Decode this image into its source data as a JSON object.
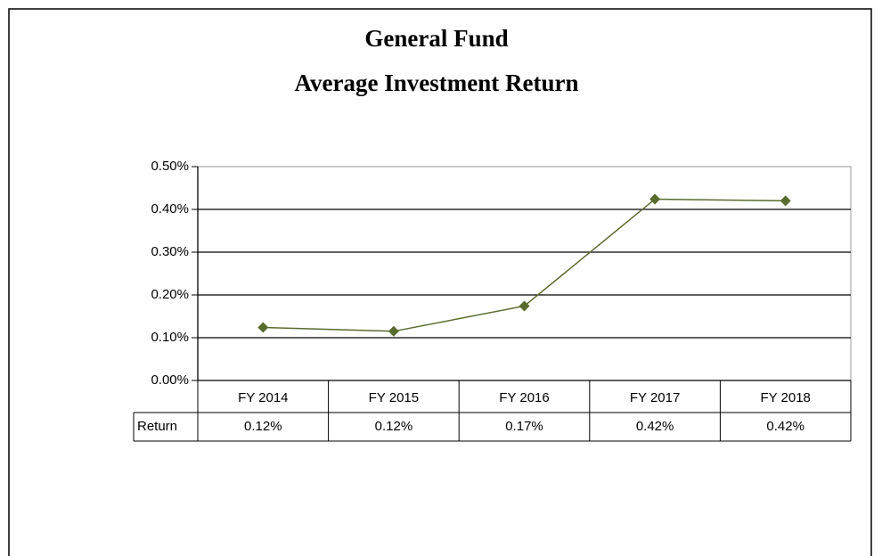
{
  "chart_data": {
    "type": "line",
    "title": [
      "General Fund",
      "Average Investment Return"
    ],
    "categories": [
      "FY 2014",
      "FY 2015",
      "FY 2016",
      "FY 2017",
      "FY 2018"
    ],
    "series": [
      {
        "name": "Return",
        "color": "#5a6b2e",
        "values": [
          0.124,
          0.115,
          0.174,
          0.424,
          0.42
        ],
        "value_labels": [
          "0.12%",
          "0.12%",
          "0.17%",
          "0.42%",
          "0.42%"
        ]
      }
    ],
    "ylim": [
      0,
      0.5
    ],
    "yticks": [
      {
        "value": 0,
        "label": "0.00%"
      },
      {
        "value": 0.1,
        "label": "0.10%"
      },
      {
        "value": 0.2,
        "label": "0.20%"
      },
      {
        "value": 0.3,
        "label": "0.30%"
      },
      {
        "value": 0.4,
        "label": "0.40%"
      },
      {
        "value": 0.5,
        "label": "0.50%"
      }
    ],
    "grid": true,
    "data_table": true
  }
}
